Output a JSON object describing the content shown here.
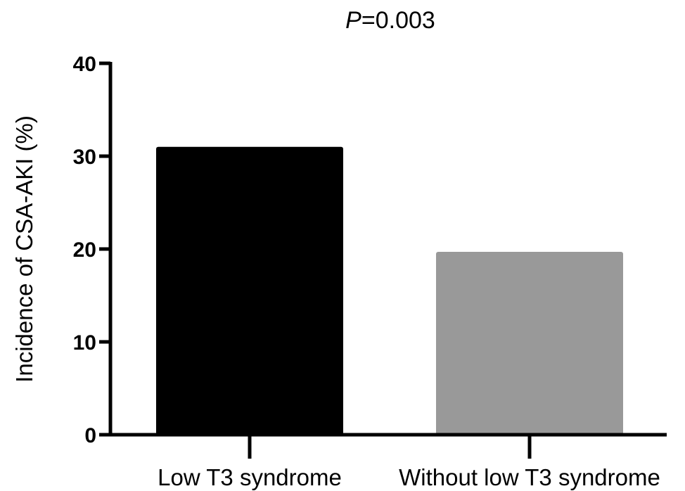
{
  "chart_data": {
    "type": "bar",
    "title": {
      "italic": "P",
      "rest": "=0.003"
    },
    "ylabel": "Incidence of CSA-AKI (%)",
    "xlabel": "",
    "categories": [
      "Low T3 syndrome",
      "Without low T3 syndrome"
    ],
    "values": [
      31,
      19.7
    ],
    "colors": [
      "#000000",
      "#999999"
    ],
    "ylim": [
      0,
      40
    ],
    "yticks": [
      "0",
      "10",
      "20",
      "30",
      "40"
    ],
    "grid": false,
    "legend": "none"
  }
}
